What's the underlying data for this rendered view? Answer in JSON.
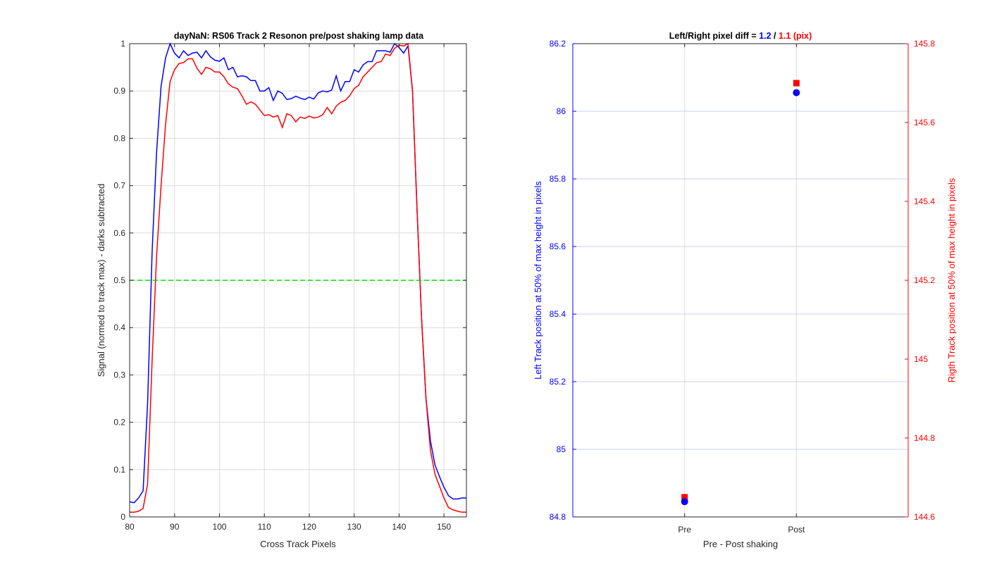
{
  "chart_data": [
    {
      "type": "line",
      "title": "dayNaN: RS06  Track 2 Resonon pre/post shaking lamp data",
      "xlabel": "Cross Track Pixels",
      "ylabel": "Signal (normed to track max) - darks subtracted",
      "xlim": [
        80,
        155
      ],
      "ylim": [
        0,
        1
      ],
      "xticks": [
        80,
        90,
        100,
        110,
        120,
        130,
        140,
        150
      ],
      "yticks": [
        0,
        0.1,
        0.2,
        0.3,
        0.4,
        0.5,
        0.6,
        0.7,
        0.8,
        0.9,
        1
      ],
      "ytick_labels": [
        "0",
        "0.1",
        "0.2",
        "0.3",
        "0.4",
        "0.5",
        "0.6",
        "0.7",
        "0.8",
        "0.9",
        "1"
      ],
      "grid": true,
      "series": [
        {
          "color": "#0000ff",
          "x": [
            80,
            81,
            82,
            83,
            84,
            85,
            86,
            87,
            88,
            89,
            90,
            91,
            92,
            93,
            94,
            95,
            96,
            97,
            98,
            99,
            100,
            101,
            102,
            103,
            104,
            105,
            106,
            107,
            108,
            109,
            110,
            111,
            112,
            113,
            114,
            115,
            116,
            117,
            118,
            119,
            120,
            121,
            122,
            123,
            124,
            125,
            126,
            127,
            128,
            129,
            130,
            131,
            132,
            133,
            134,
            135,
            136,
            137,
            138,
            139,
            140,
            141,
            142,
            143,
            144,
            145,
            146,
            147,
            148,
            149,
            150,
            151,
            152,
            153,
            154,
            155
          ],
          "y": [
            0.032,
            0.03,
            0.04,
            0.055,
            0.24,
            0.56,
            0.77,
            0.91,
            0.97,
            1.0,
            0.98,
            0.97,
            0.985,
            0.975,
            0.98,
            0.982,
            0.97,
            0.985,
            0.972,
            0.965,
            0.963,
            0.97,
            0.945,
            0.95,
            0.93,
            0.932,
            0.93,
            0.922,
            0.922,
            0.9,
            0.9,
            0.907,
            0.88,
            0.9,
            0.895,
            0.882,
            0.884,
            0.889,
            0.885,
            0.882,
            0.887,
            0.883,
            0.896,
            0.9,
            0.898,
            0.902,
            0.932,
            0.9,
            0.92,
            0.92,
            0.945,
            0.94,
            0.955,
            0.962,
            0.962,
            0.985,
            0.985,
            0.985,
            0.982,
            1.0,
            0.992,
            0.98,
            0.995,
            0.9,
            0.65,
            0.42,
            0.25,
            0.16,
            0.11,
            0.085,
            0.063,
            0.045,
            0.038,
            0.038,
            0.04,
            0.04
          ]
        },
        {
          "color": "#ff0000",
          "x": [
            80,
            81,
            82,
            83,
            84,
            85,
            86,
            87,
            88,
            89,
            90,
            91,
            92,
            93,
            94,
            95,
            96,
            97,
            98,
            99,
            100,
            101,
            102,
            103,
            104,
            105,
            106,
            107,
            108,
            109,
            110,
            111,
            112,
            113,
            114,
            115,
            116,
            117,
            118,
            119,
            120,
            121,
            122,
            123,
            124,
            125,
            126,
            127,
            128,
            129,
            130,
            131,
            132,
            133,
            134,
            135,
            136,
            137,
            138,
            139,
            140,
            141,
            142,
            143,
            144,
            145,
            146,
            147,
            148,
            149,
            150,
            151,
            152,
            153,
            154,
            155
          ],
          "y": [
            0.01,
            0.01,
            0.012,
            0.018,
            0.07,
            0.33,
            0.55,
            0.7,
            0.83,
            0.92,
            0.945,
            0.958,
            0.96,
            0.968,
            0.968,
            0.948,
            0.935,
            0.95,
            0.947,
            0.94,
            0.94,
            0.93,
            0.915,
            0.908,
            0.905,
            0.89,
            0.872,
            0.877,
            0.872,
            0.86,
            0.848,
            0.85,
            0.845,
            0.848,
            0.823,
            0.852,
            0.848,
            0.835,
            0.845,
            0.842,
            0.847,
            0.843,
            0.845,
            0.85,
            0.865,
            0.852,
            0.868,
            0.876,
            0.88,
            0.89,
            0.905,
            0.912,
            0.93,
            0.94,
            0.95,
            0.96,
            0.962,
            0.978,
            0.975,
            0.99,
            0.997,
            0.995,
            1.0,
            0.9,
            0.65,
            0.42,
            0.25,
            0.14,
            0.09,
            0.065,
            0.04,
            0.02,
            0.015,
            0.012,
            0.01,
            0.01
          ]
        },
        {
          "color": "#00dd00",
          "dashed": true,
          "x": [
            80,
            155
          ],
          "y": [
            0.5,
            0.5
          ]
        }
      ]
    },
    {
      "type": "scatter",
      "title_parts": [
        {
          "text": "Left/Right pixel diff = ",
          "color": "#000000"
        },
        {
          "text": "1.2",
          "color": "#0000ff"
        },
        {
          "text": " / ",
          "color": "#000000"
        },
        {
          "text": "1.1 (pix)",
          "color": "#ff0000"
        }
      ],
      "xlabel": "Pre - Post shaking",
      "ylabel_left": "Left Track position at 50% of max height in pixels",
      "ylabel_right": "Rigth Track position at 50% of max height in pixels",
      "categories": [
        "Pre",
        "Post"
      ],
      "xlim": [
        0,
        3
      ],
      "ylim_left": [
        84.8,
        86.2
      ],
      "ylim_right": [
        144.6,
        145.8
      ],
      "yticks_left": [
        "84.8",
        "85",
        "85.2",
        "85.4",
        "85.6",
        "85.8",
        "86",
        "86.2"
      ],
      "yticks_right": [
        "144.6",
        "144.8",
        "145",
        "145.2",
        "145.4",
        "145.6",
        "145.8"
      ],
      "left_color": "#0000ff",
      "right_color": "#ff0000",
      "left_values": [
        84.845,
        86.055
      ],
      "right_values": [
        144.65,
        145.7
      ]
    }
  ]
}
